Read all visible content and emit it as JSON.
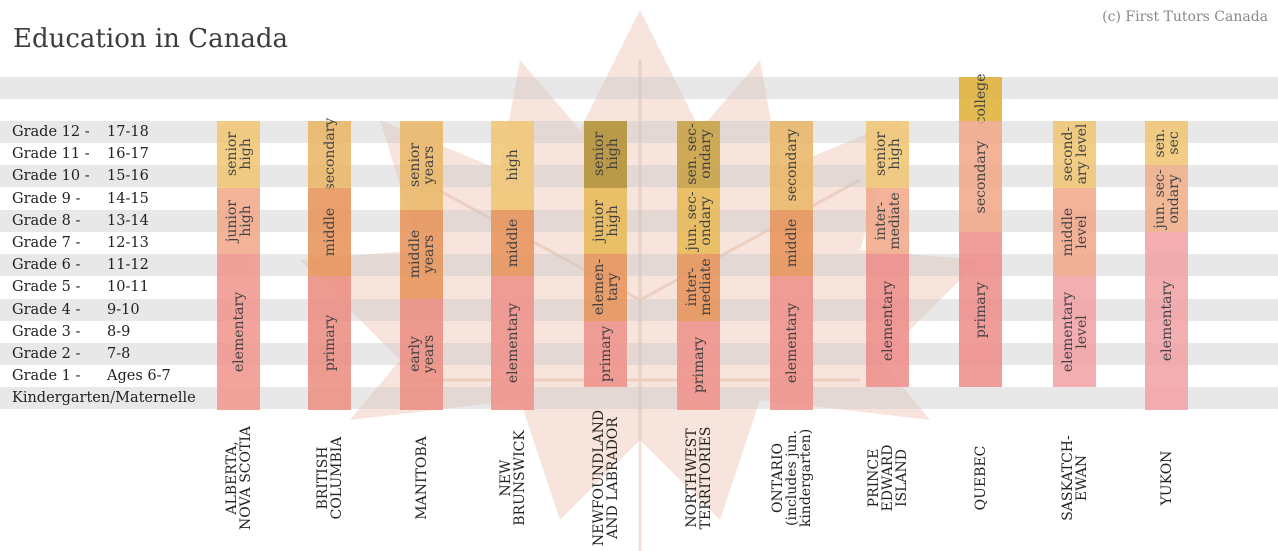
{
  "title": "Education in Canada",
  "copyright": "(c) First Tutors Canada",
  "colors": {
    "college": "#e0b23a",
    "senior": "#e8c45a",
    "middle": "#e99a52",
    "primary": "#ee9a8c",
    "elementary": "#f2a3a8",
    "dark": "#a58b2c"
  },
  "grades": [
    {
      "name": "Grade 12 -",
      "age": "17-18"
    },
    {
      "name": "Grade 11 -",
      "age": "16-17"
    },
    {
      "name": "Grade 10 -",
      "age": "15-16"
    },
    {
      "name": "Grade 9  -",
      "age": "14-15"
    },
    {
      "name": "Grade 8  -",
      "age": "13-14"
    },
    {
      "name": "Grade 7  -",
      "age": "12-13"
    },
    {
      "name": "Grade 6  -",
      "age": "11-12"
    },
    {
      "name": "Grade 5  -",
      "age": "10-11"
    },
    {
      "name": "Grade 4  -",
      "age": "9-10"
    },
    {
      "name": "Grade 3  -",
      "age": "8-9"
    },
    {
      "name": "Grade 2  -",
      "age": "7-8"
    },
    {
      "name": "Grade 1  -",
      "age": "Ages 6-7"
    },
    {
      "name": "Kindergarten/Maternelle",
      "age": ""
    }
  ],
  "provinces": [
    {
      "label": "ALBERTA,\nNOVA SCOTIA",
      "segments": [
        {
          "label": "senior\nhigh",
          "from": 10,
          "to": 12,
          "color": "#f1c776"
        },
        {
          "label": "junior\nhigh",
          "from": 7,
          "to": 9,
          "color": "#f1a98a"
        },
        {
          "label": "elementary",
          "from": 0,
          "to": 6,
          "color": "#f0978f"
        }
      ]
    },
    {
      "label": "BRITISH\nCOLUMBIA",
      "segments": [
        {
          "label": "secondary",
          "from": 10,
          "to": 12,
          "color": "#eab869"
        },
        {
          "label": "middle",
          "from": 6,
          "to": 9,
          "color": "#e8955c"
        },
        {
          "label": "primary",
          "from": 0,
          "to": 5,
          "color": "#ec8f84"
        }
      ]
    },
    {
      "label": "MANITOBA",
      "segments": [
        {
          "label": "senior\nyears",
          "from": 9,
          "to": 12,
          "color": "#eab869"
        },
        {
          "label": "middle\nyears",
          "from": 5,
          "to": 8,
          "color": "#e8955c"
        },
        {
          "label": "early\nyears",
          "from": 0,
          "to": 4,
          "color": "#ec8f84"
        }
      ]
    },
    {
      "label": "NEW\nBRUNSWICK",
      "segments": [
        {
          "label": "high",
          "from": 9,
          "to": 12,
          "color": "#f1c776"
        },
        {
          "label": "middle",
          "from": 6,
          "to": 8,
          "color": "#e8955c"
        },
        {
          "label": "elementary",
          "from": 0,
          "to": 5,
          "color": "#ef938c"
        }
      ]
    },
    {
      "label": "NEWFOUNDLAND\nAND LABRADOR",
      "segments": [
        {
          "label": "senior\nhigh",
          "from": 10,
          "to": 12,
          "color": "#b39236"
        },
        {
          "label": "junior\nhigh",
          "from": 7,
          "to": 9,
          "color": "#e8bb59"
        },
        {
          "label": "elemen-\ntary",
          "from": 4,
          "to": 6,
          "color": "#e8955c"
        },
        {
          "label": "primary",
          "from": 1,
          "to": 3,
          "color": "#ef938c"
        }
      ]
    },
    {
      "label": "NORTHWEST\nTERRITORIES",
      "segments": [
        {
          "label": "sen. sec-\nondary",
          "from": 10,
          "to": 12,
          "color": "#c9a345"
        },
        {
          "label": "jun. sec-\nondary",
          "from": 7,
          "to": 9,
          "color": "#e8bb59"
        },
        {
          "label": "inter-\nmediate",
          "from": 4,
          "to": 6,
          "color": "#e8955c"
        },
        {
          "label": "primary",
          "from": 0,
          "to": 3,
          "color": "#ef938c"
        }
      ]
    },
    {
      "label": "ONTARIO\n(includes jun.\nkindergarten)",
      "segments": [
        {
          "label": "secondary",
          "from": 9,
          "to": 12,
          "color": "#eab869"
        },
        {
          "label": "middle",
          "from": 6,
          "to": 8,
          "color": "#e8955c"
        },
        {
          "label": "elementary",
          "from": -1,
          "to": 5,
          "color": "#ef938c"
        }
      ]
    },
    {
      "label": "PRINCE\nEDWARD\nISLAND",
      "segments": [
        {
          "label": "senior\nhigh",
          "from": 10,
          "to": 12,
          "color": "#f1c776"
        },
        {
          "label": "inter-\nmediate",
          "from": 7,
          "to": 9,
          "color": "#f1a98a"
        },
        {
          "label": "elementary",
          "from": 1,
          "to": 6,
          "color": "#ef8f8c"
        }
      ]
    },
    {
      "label": "QUEBEC",
      "segments": [
        {
          "label": "college",
          "from": 13,
          "to": 14,
          "color": "#e0b23a"
        },
        {
          "label": "secondary",
          "from": 8,
          "to": 12,
          "color": "#f1a98a"
        },
        {
          "label": "primary",
          "from": 1,
          "to": 7,
          "color": "#ef8f8c"
        }
      ]
    },
    {
      "label": "SASKATCH-\nEWAN",
      "segments": [
        {
          "label": "second-\nary level",
          "from": 10,
          "to": 12,
          "color": "#f1c776"
        },
        {
          "label": "middle\nlevel",
          "from": 6,
          "to": 9,
          "color": "#f1a98a"
        },
        {
          "label": "elementary\nlevel",
          "from": 1,
          "to": 5,
          "color": "#f2a3a8"
        }
      ]
    },
    {
      "label": "YUKON",
      "segments": [
        {
          "label": "sen.\nsec",
          "from": 11,
          "to": 12,
          "color": "#f1c776"
        },
        {
          "label": "jun. sec-\nondary",
          "from": 8,
          "to": 10,
          "color": "#f1b08a"
        },
        {
          "label": "elementary",
          "from": 0,
          "to": 7,
          "color": "#f2a3a8"
        }
      ]
    }
  ]
}
